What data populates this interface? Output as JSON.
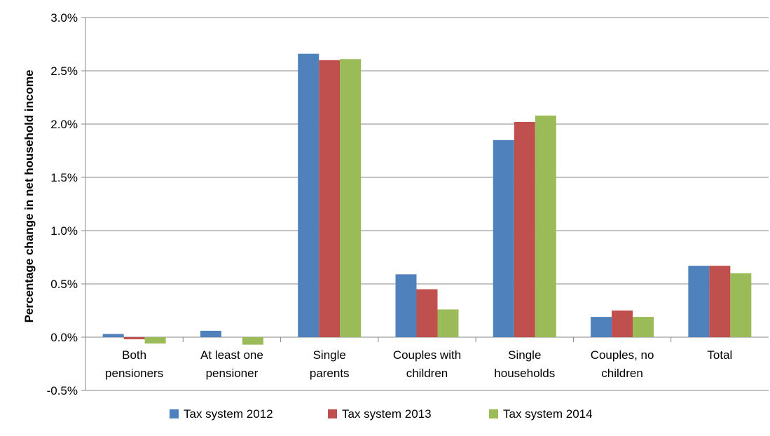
{
  "chart_data": {
    "type": "bar",
    "title": "",
    "xlabel": "",
    "ylabel": "Percentage change in net household income",
    "ylim": [
      -0.5,
      3.0
    ],
    "yticks": [
      "3.0%",
      "2.5%",
      "2.0%",
      "1.5%",
      "1.0%",
      "0.5%",
      "0.0%",
      "-0.5%"
    ],
    "ytick_values": [
      3.0,
      2.5,
      2.0,
      1.5,
      1.0,
      0.5,
      0.0,
      -0.5
    ],
    "grid": true,
    "legend_position": "bottom",
    "categories": [
      [
        "Both",
        "pensioners"
      ],
      [
        "At least one",
        "pensioner"
      ],
      [
        "Single",
        "parents"
      ],
      [
        "Couples with",
        "children"
      ],
      [
        "Single",
        "households"
      ],
      [
        "Couples, no",
        "children"
      ],
      [
        "Total"
      ]
    ],
    "series": [
      {
        "name": "Tax system 2012",
        "color": "#4f81bd",
        "values": [
          0.03,
          0.06,
          2.66,
          0.59,
          1.85,
          0.19,
          0.67
        ]
      },
      {
        "name": "Tax system 2013",
        "color": "#c0504d",
        "values": [
          -0.02,
          0.0,
          2.6,
          0.45,
          2.02,
          0.25,
          0.67
        ]
      },
      {
        "name": "Tax system 2014",
        "color": "#9bbb59",
        "values": [
          -0.06,
          -0.07,
          2.61,
          0.26,
          2.08,
          0.19,
          0.6
        ]
      }
    ]
  }
}
